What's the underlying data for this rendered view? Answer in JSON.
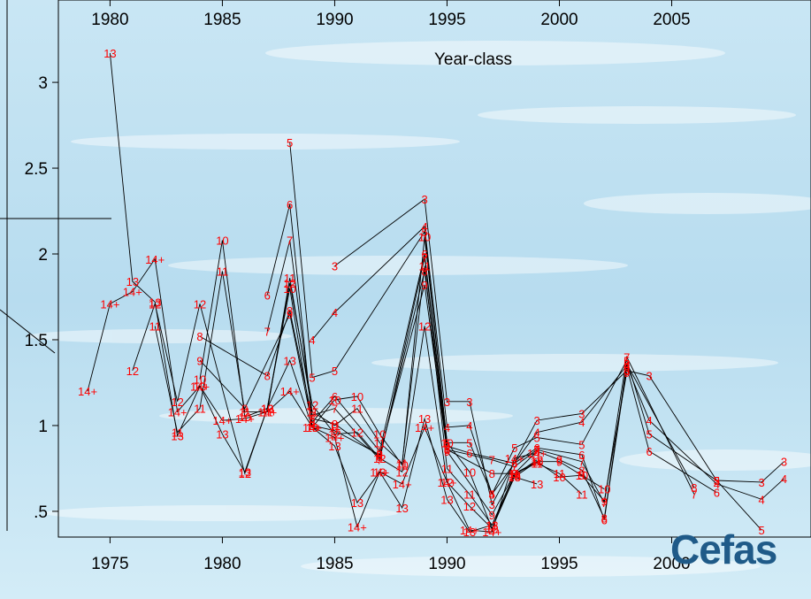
{
  "logo": {
    "text": "Cefas"
  },
  "chart_data": {
    "type": "line",
    "title": "",
    "top_axis_label": "Year-class",
    "bottom_axis_ticks": [
      "1975",
      "1980",
      "1985",
      "1990",
      "1995",
      "2000"
    ],
    "top_axis_ticks": [
      "1980",
      "1985",
      "1990",
      "1995",
      "2000",
      "2005"
    ],
    "y_ticks": [
      "3",
      "2.5",
      "2",
      "1.5",
      "1",
      ".5"
    ],
    "xlim": [
      1972.7,
      2006.2
    ],
    "ylim": [
      0.35,
      3.48
    ],
    "series": [
      {
        "name": "3",
        "points": [
          [
            1985,
            1.93
          ],
          [
            1989,
            2.32
          ],
          [
            1990,
            1.14
          ],
          [
            1991,
            1.14
          ],
          [
            1992,
            0.54
          ],
          [
            1994,
            1.03
          ],
          [
            1996,
            1.07
          ],
          [
            1998,
            1.32
          ],
          [
            1999,
            1.29
          ],
          [
            2002,
            0.68
          ],
          [
            2004,
            0.67
          ],
          [
            2005,
            0.79
          ]
        ]
      },
      {
        "name": "4",
        "points": [
          [
            1984,
            1.5
          ],
          [
            1985,
            1.66
          ],
          [
            1989,
            2.16
          ],
          [
            1990,
            0.99
          ],
          [
            1991,
            1.0
          ],
          [
            1992,
            0.6
          ],
          [
            1994,
            0.96
          ],
          [
            1996,
            1.02
          ],
          [
            1998,
            1.35
          ],
          [
            1999,
            1.03
          ],
          [
            2002,
            0.66
          ],
          [
            2004,
            0.57
          ],
          [
            2005,
            0.69
          ]
        ]
      },
      {
        "name": "5",
        "points": [
          [
            1983,
            2.65
          ],
          [
            1984,
            1.28
          ],
          [
            1985,
            1.32
          ],
          [
            1989,
            2.13
          ],
          [
            1990,
            0.9
          ],
          [
            1991,
            0.9
          ],
          [
            1992,
            0.6
          ],
          [
            1993,
            0.87
          ],
          [
            1994,
            0.93
          ],
          [
            1996,
            0.89
          ],
          [
            1998,
            1.38
          ],
          [
            1999,
            0.95
          ],
          [
            2002,
            0.68
          ],
          [
            2004,
            0.39
          ]
        ]
      },
      {
        "name": "6",
        "points": [
          [
            1982,
            1.76
          ],
          [
            1983,
            2.29
          ],
          [
            1984,
            1.02
          ],
          [
            1985,
            1.17
          ],
          [
            1987,
            0.85
          ],
          [
            1989,
            2.0
          ],
          [
            1990,
            0.88
          ],
          [
            1991,
            0.84
          ],
          [
            1993,
            0.78
          ],
          [
            1994,
            0.87
          ],
          [
            1996,
            0.83
          ],
          [
            1997,
            0.45
          ],
          [
            1998,
            1.34
          ],
          [
            1999,
            0.85
          ],
          [
            2002,
            0.61
          ]
        ]
      },
      {
        "name": "7",
        "points": [
          [
            1982,
            1.55
          ],
          [
            1983,
            2.08
          ],
          [
            1984,
            1.06
          ],
          [
            1985,
            1.1
          ],
          [
            1987,
            0.8
          ],
          [
            1989,
            1.98
          ],
          [
            1990,
            0.86
          ],
          [
            1992,
            0.8
          ],
          [
            1993,
            0.76
          ],
          [
            1994,
            0.86
          ],
          [
            1996,
            0.79
          ],
          [
            1997,
            0.55
          ],
          [
            1998,
            1.4
          ],
          [
            2001,
            0.6
          ]
        ]
      },
      {
        "name": "8",
        "points": [
          [
            1979,
            1.52
          ],
          [
            1982,
            1.29
          ],
          [
            1983,
            1.67
          ],
          [
            1984,
            1.04
          ],
          [
            1985,
            1.01
          ],
          [
            1987,
            0.82
          ],
          [
            1989,
            1.9
          ],
          [
            1990,
            0.86
          ],
          [
            1992,
            0.72
          ],
          [
            1993,
            0.72
          ],
          [
            1994,
            0.85
          ],
          [
            1995,
            0.8
          ],
          [
            1996,
            0.74
          ],
          [
            1997,
            0.46
          ],
          [
            1998,
            1.36
          ],
          [
            2001,
            0.64
          ]
        ]
      },
      {
        "name": "9",
        "points": [
          [
            1979,
            1.38
          ],
          [
            1981,
            1.1
          ],
          [
            1983,
            1.65
          ],
          [
            1984,
            1.0
          ],
          [
            1985,
            0.97
          ],
          [
            1987,
            0.83
          ],
          [
            1989,
            1.82
          ],
          [
            1990,
            0.85
          ],
          [
            1992,
            0.48
          ],
          [
            1993,
            0.72
          ],
          [
            1994,
            0.79
          ],
          [
            1995,
            0.79
          ],
          [
            1996,
            0.71
          ],
          [
            1997,
            0.56
          ],
          [
            1998,
            1.31
          ]
        ]
      },
      {
        "name": "10",
        "points": [
          [
            1979,
            1.27
          ],
          [
            1980,
            2.08
          ],
          [
            1981,
            1.05
          ],
          [
            1982,
            1.1
          ],
          [
            1983,
            1.8
          ],
          [
            1984,
            0.99
          ],
          [
            1985,
            1.15
          ],
          [
            1986,
            1.17
          ],
          [
            1987,
            0.95
          ],
          [
            1988,
            0.77
          ],
          [
            1989,
            2.1
          ],
          [
            1990,
            0.9
          ],
          [
            1991,
            0.73
          ],
          [
            1992,
            0.4
          ],
          [
            1993,
            0.7
          ],
          [
            1994,
            0.79
          ],
          [
            1995,
            0.7
          ],
          [
            1996,
            0.71
          ],
          [
            1997,
            0.63
          ]
        ]
      },
      {
        "name": "11",
        "points": [
          [
            1977,
            1.58
          ],
          [
            1978,
            0.96
          ],
          [
            1979,
            1.1
          ],
          [
            1980,
            1.9
          ],
          [
            1981,
            1.08
          ],
          [
            1982,
            1.08
          ],
          [
            1983,
            1.86
          ],
          [
            1984,
            1.08
          ],
          [
            1985,
            1.0
          ],
          [
            1986,
            1.1
          ],
          [
            1987,
            0.9
          ],
          [
            1988,
            0.78
          ],
          [
            1989,
            1.93
          ],
          [
            1990,
            0.75
          ],
          [
            1991,
            0.6
          ],
          [
            1992,
            0.42
          ],
          [
            1993,
            0.72
          ],
          [
            1994,
            0.78
          ],
          [
            1995,
            0.72
          ],
          [
            1996,
            0.6
          ]
        ]
      },
      {
        "name": "12",
        "points": [
          [
            1976,
            1.32
          ],
          [
            1977,
            1.71
          ],
          [
            1978,
            1.14
          ],
          [
            1979,
            1.71
          ],
          [
            1981,
            0.72
          ],
          [
            1982,
            1.1
          ],
          [
            1983,
            1.83
          ],
          [
            1984,
            1.12
          ],
          [
            1985,
            0.95
          ],
          [
            1986,
            0.96
          ],
          [
            1987,
            0.81
          ],
          [
            1988,
            0.73
          ],
          [
            1989,
            1.58
          ],
          [
            1990,
            0.67
          ],
          [
            1991,
            0.53
          ],
          [
            1992,
            0.4
          ],
          [
            1993,
            0.71
          ],
          [
            1994,
            0.8
          ]
        ]
      },
      {
        "name": "13",
        "points": [
          [
            1975,
            3.17
          ],
          [
            1976,
            1.84
          ],
          [
            1977,
            1.72
          ],
          [
            1978,
            0.94
          ],
          [
            1979,
            1.23
          ],
          [
            1980,
            0.95
          ],
          [
            1981,
            0.73
          ],
          [
            1982,
            1.1
          ],
          [
            1983,
            1.38
          ],
          [
            1984,
            0.99
          ],
          [
            1985,
            0.88
          ],
          [
            1986,
            0.55
          ],
          [
            1987,
            0.73
          ],
          [
            1988,
            0.52
          ],
          [
            1989,
            1.04
          ],
          [
            1990,
            0.57
          ],
          [
            1991,
            0.38
          ],
          [
            1992,
            0.42
          ],
          [
            1993,
            0.7
          ],
          [
            1994,
            0.66
          ]
        ]
      },
      {
        "name": "14+",
        "points": [
          [
            1974,
            1.2
          ],
          [
            1975,
            1.71
          ],
          [
            1976,
            1.78
          ],
          [
            1977,
            1.97
          ],
          [
            1978,
            1.08
          ],
          [
            1979,
            1.23
          ],
          [
            1980,
            1.03
          ],
          [
            1981,
            1.04
          ],
          [
            1982,
            1.08
          ],
          [
            1983,
            1.2
          ],
          [
            1984,
            0.99
          ],
          [
            1985,
            0.93
          ],
          [
            1986,
            0.41
          ],
          [
            1987,
            0.73
          ],
          [
            1988,
            0.66
          ],
          [
            1989,
            0.99
          ],
          [
            1990,
            0.67
          ],
          [
            1991,
            0.39
          ],
          [
            1992,
            0.38
          ],
          [
            1993,
            0.81
          ],
          [
            1994,
            0.84
          ]
        ]
      }
    ]
  }
}
